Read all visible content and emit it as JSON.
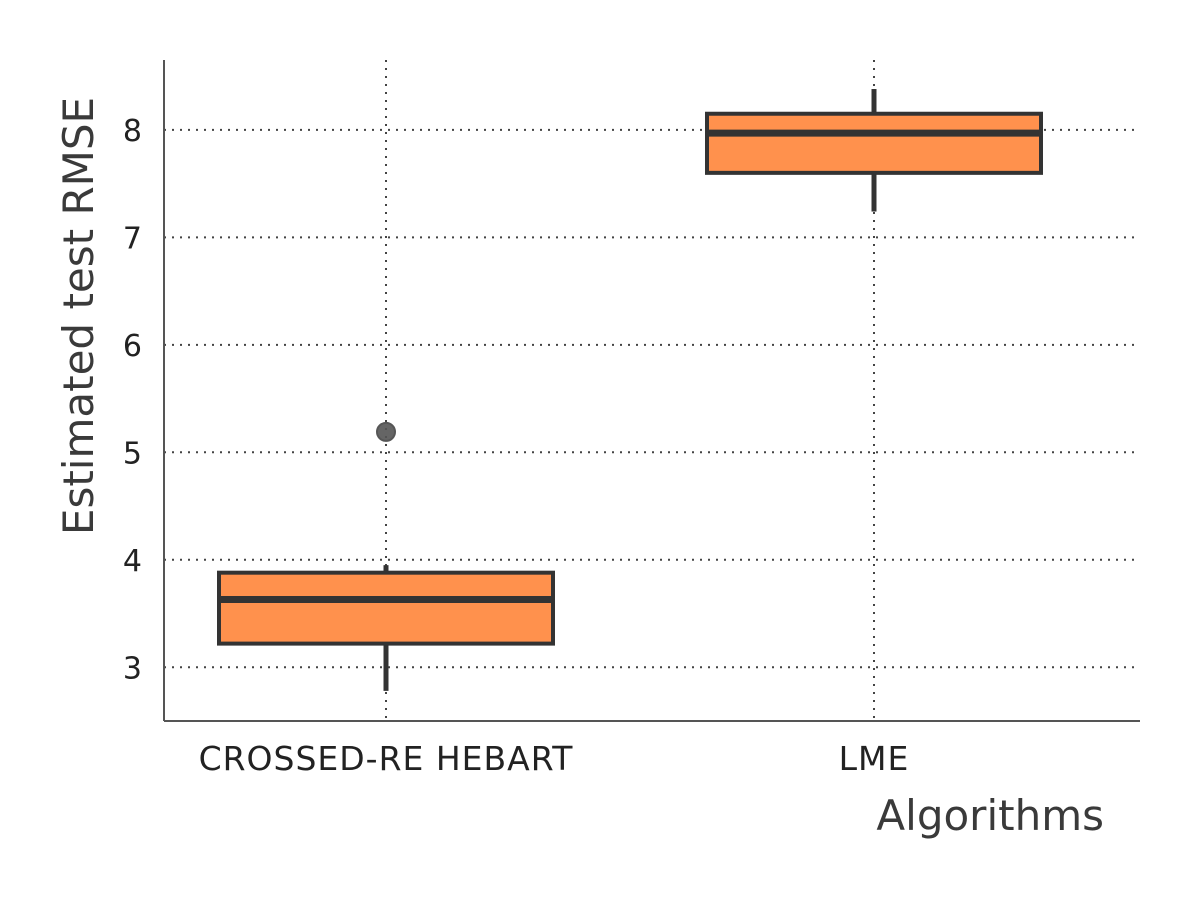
{
  "chart_data": {
    "type": "box",
    "xlabel": "Algorithms",
    "ylabel": "Estimated test RMSE",
    "ylim": [
      2.5,
      8.65
    ],
    "yticks": [
      3,
      4,
      5,
      6,
      7,
      8
    ],
    "grid": true,
    "categories": [
      "CROSSED-RE HEBART",
      "LME"
    ],
    "boxes": [
      {
        "category": "CROSSED-RE HEBART",
        "whisker_low": 2.78,
        "q1": 3.22,
        "median": 3.63,
        "q3": 3.88,
        "whisker_high": 3.95,
        "outliers": [
          5.19
        ]
      },
      {
        "category": "LME",
        "whisker_low": 7.24,
        "q1": 7.6,
        "median": 7.97,
        "q3": 8.15,
        "whisker_high": 8.38,
        "outliers": []
      }
    ]
  },
  "colors": {
    "box_fill": "#FF914D",
    "box_edge": "#333333",
    "outlier": "#555555",
    "grid": "#444444",
    "axis": "#555555"
  }
}
